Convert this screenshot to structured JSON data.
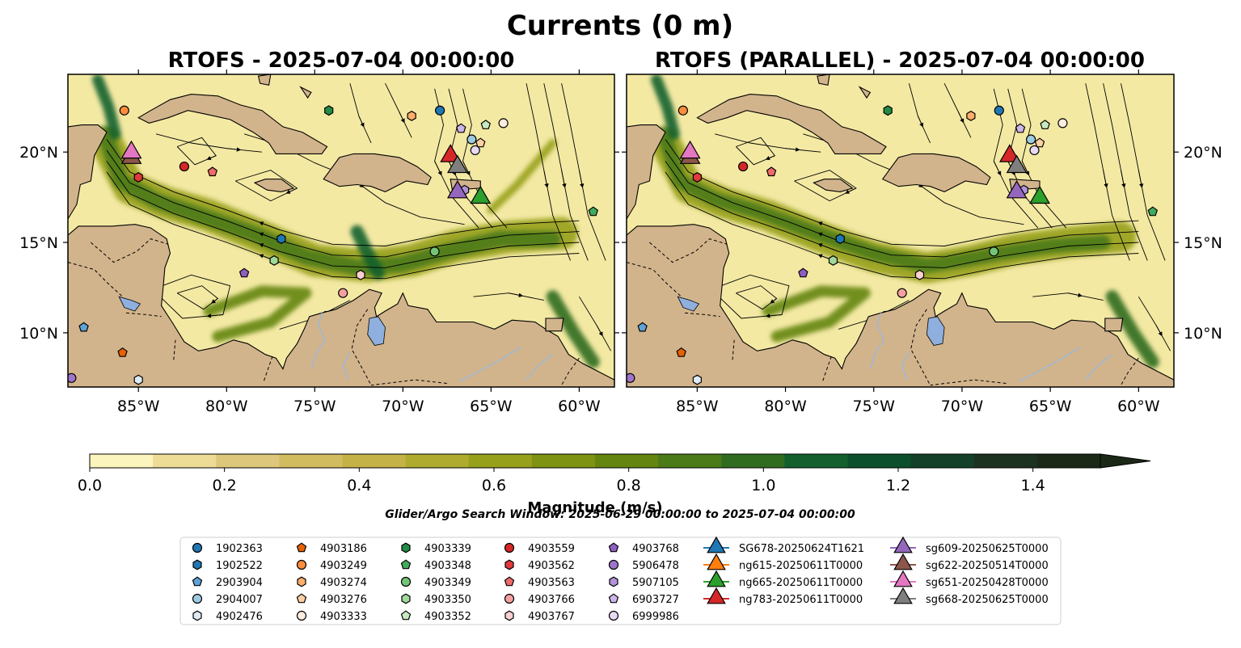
{
  "figure": {
    "suptitle": "Currents (0 m)",
    "window_text": "Glider/Argo Search Window: 2025-06-29 00:00:00 to 2025-07-04 00:00:00"
  },
  "panels": [
    {
      "title": "RTOFS - 2025-07-04 00:00:00"
    },
    {
      "title": "RTOFS (PARALLEL) - 2025-07-04 00:00:00"
    }
  ],
  "map": {
    "lon_range": [
      -89,
      -58
    ],
    "lat_range": [
      7,
      24.3
    ],
    "lon_ticks": [
      {
        "value": -85,
        "label": "85°W"
      },
      {
        "value": -80,
        "label": "80°W"
      },
      {
        "value": -75,
        "label": "75°W"
      },
      {
        "value": -70,
        "label": "70°W"
      },
      {
        "value": -65,
        "label": "65°W"
      },
      {
        "value": -60,
        "label": "60°W"
      }
    ],
    "lat_ticks": [
      {
        "value": 10,
        "label": "10°N"
      },
      {
        "value": 15,
        "label": "15°N"
      },
      {
        "value": 20,
        "label": "20°N"
      }
    ]
  },
  "colorbar": {
    "label": "Magnitude (m/s)",
    "range": [
      0,
      1.5
    ],
    "extend": "max",
    "ticks": [
      {
        "value": 0.0,
        "label": "0.0"
      },
      {
        "value": 0.2,
        "label": "0.2"
      },
      {
        "value": 0.4,
        "label": "0.4"
      },
      {
        "value": 0.6,
        "label": "0.6"
      },
      {
        "value": 0.8,
        "label": "0.8"
      },
      {
        "value": 1.0,
        "label": "1.0"
      },
      {
        "value": 1.2,
        "label": "1.2"
      },
      {
        "value": 1.4,
        "label": "1.4"
      }
    ],
    "colors": [
      "#fbf5bd",
      "#ecdc96",
      "#ddc77a",
      "#d2bc60",
      "#c5b247",
      "#afab2e",
      "#97a01b",
      "#7e9311",
      "#64850f",
      "#4b7a19",
      "#2f6c1f",
      "#13602e",
      "#0c4f2c",
      "#143f29",
      "#1b3220",
      "#1b2818"
    ]
  },
  "legend": {
    "columns": [
      [
        {
          "label": "1902363",
          "color": "#1f77b4",
          "marker": "circle"
        },
        {
          "label": "1902522",
          "color": "#1f77b4",
          "marker": "hexagon"
        },
        {
          "label": "2903904",
          "color": "#5fa2d6",
          "marker": "pentagon"
        },
        {
          "label": "2904007",
          "color": "#9ecae1",
          "marker": "circle"
        },
        {
          "label": "4902476",
          "color": "#deebf7",
          "marker": "hexagon"
        }
      ],
      [
        {
          "label": "4903186",
          "color": "#e66101",
          "marker": "pentagon"
        },
        {
          "label": "4903249",
          "color": "#fd8d3c",
          "marker": "circle"
        },
        {
          "label": "4903274",
          "color": "#fdae6b",
          "marker": "hexagon"
        },
        {
          "label": "4903276",
          "color": "#fdd0a2",
          "marker": "pentagon"
        },
        {
          "label": "4903333",
          "color": "#feedde",
          "marker": "circle"
        }
      ],
      [
        {
          "label": "4903339",
          "color": "#238b45",
          "marker": "hexagon"
        },
        {
          "label": "4903348",
          "color": "#41ab5d",
          "marker": "pentagon"
        },
        {
          "label": "4903349",
          "color": "#74c476",
          "marker": "circle"
        },
        {
          "label": "4903350",
          "color": "#a1d99b",
          "marker": "hexagon"
        },
        {
          "label": "4903352",
          "color": "#c7e9c0",
          "marker": "pentagon"
        }
      ],
      [
        {
          "label": "4903559",
          "color": "#d62728",
          "marker": "circle"
        },
        {
          "label": "4903562",
          "color": "#e3393c",
          "marker": "hexagon"
        },
        {
          "label": "4903563",
          "color": "#ef6a6a",
          "marker": "pentagon"
        },
        {
          "label": "4903766",
          "color": "#f4a0a0",
          "marker": "circle"
        },
        {
          "label": "4903767",
          "color": "#fbd0d0",
          "marker": "hexagon"
        }
      ],
      [
        {
          "label": "4903768",
          "color": "#8d5fbf",
          "marker": "pentagon"
        },
        {
          "label": "5906478",
          "color": "#9f75cc",
          "marker": "circle"
        },
        {
          "label": "5907105",
          "color": "#b393d9",
          "marker": "hexagon"
        },
        {
          "label": "6903727",
          "color": "#cdb6e8",
          "marker": "pentagon"
        },
        {
          "label": "6999986",
          "color": "#e8d9f5",
          "marker": "circle"
        }
      ],
      [
        {
          "label": "SG678-20250624T1621",
          "color": "#1f77b4",
          "marker": "triangle"
        },
        {
          "label": "ng615-20250611T0000",
          "color": "#ff7f0e",
          "marker": "triangle"
        },
        {
          "label": "ng665-20250611T0000",
          "color": "#2ca02c",
          "marker": "triangle"
        },
        {
          "label": "ng783-20250611T0000",
          "color": "#d62728",
          "marker": "triangle"
        }
      ],
      [
        {
          "label": "sg609-20250625T0000",
          "color": "#9467bd",
          "marker": "triangle"
        },
        {
          "label": "sg622-20250514T0000",
          "color": "#8c564b",
          "marker": "triangle"
        },
        {
          "label": "sg651-20250428T0000",
          "color": "#e377c2",
          "marker": "triangle"
        },
        {
          "label": "sg668-20250625T0000",
          "color": "#7f7f7f",
          "marker": "triangle"
        }
      ]
    ]
  },
  "argo_floats": [
    {
      "id": "1902363",
      "lon": -67.9,
      "lat": 22.3
    },
    {
      "id": "1902522",
      "lon": -76.9,
      "lat": 15.2
    },
    {
      "id": "2903904",
      "lon": -88.1,
      "lat": 10.3
    },
    {
      "id": "2904007",
      "lon": -66.1,
      "lat": 20.7
    },
    {
      "id": "4902476",
      "lon": -85.0,
      "lat": 7.4
    },
    {
      "id": "4903186",
      "lon": -85.9,
      "lat": 8.9
    },
    {
      "id": "4903249",
      "lon": -85.8,
      "lat": 22.3
    },
    {
      "id": "4903274",
      "lon": -69.5,
      "lat": 22.0
    },
    {
      "id": "4903276",
      "lon": -65.6,
      "lat": 20.5
    },
    {
      "id": "4903333",
      "lon": -64.3,
      "lat": 21.6
    },
    {
      "id": "4903339",
      "lon": -74.2,
      "lat": 22.3
    },
    {
      "id": "4903348",
      "lon": -59.2,
      "lat": 16.7
    },
    {
      "id": "4903349",
      "lon": -68.2,
      "lat": 14.5
    },
    {
      "id": "4903350",
      "lon": -77.3,
      "lat": 14.0
    },
    {
      "id": "4903352",
      "lon": -65.3,
      "lat": 21.5
    },
    {
      "id": "4903559",
      "lon": -82.4,
      "lat": 19.2
    },
    {
      "id": "4903562",
      "lon": -85.0,
      "lat": 18.6
    },
    {
      "id": "4903563",
      "lon": -80.8,
      "lat": 18.9
    },
    {
      "id": "4903766",
      "lon": -73.4,
      "lat": 12.2
    },
    {
      "id": "4903767",
      "lon": -72.4,
      "lat": 13.2
    },
    {
      "id": "4903768",
      "lon": -79.0,
      "lat": 13.3
    },
    {
      "id": "5906478",
      "lon": -88.8,
      "lat": 7.5
    },
    {
      "id": "5907105",
      "lon": -66.5,
      "lat": 17.9
    },
    {
      "id": "6903727",
      "lon": -66.7,
      "lat": 21.3
    },
    {
      "id": "6999986",
      "lon": -65.9,
      "lat": 20.1
    }
  ],
  "gliders": [
    {
      "id": "ng783-20250611T0000",
      "lon": -67.3,
      "lat": 19.9,
      "color": "#d62728"
    },
    {
      "id": "sg668-20250625T0000",
      "lon": -66.9,
      "lat": 19.3,
      "color": "#7f7f7f"
    },
    {
      "id": "sg609-20250625T0000",
      "lon": -66.9,
      "lat": 17.9,
      "color": "#9467bd"
    },
    {
      "id": "ng665-20250611T0000",
      "lon": -65.6,
      "lat": 17.6,
      "color": "#2ca02c"
    },
    {
      "id": "sg622-20250514T0000",
      "lon": -85.4,
      "lat": 19.8,
      "color": "#8c564b"
    },
    {
      "id": "sg651-20250428T0000",
      "lon": -85.4,
      "lat": 20.1,
      "color": "#e377c2"
    }
  ]
}
